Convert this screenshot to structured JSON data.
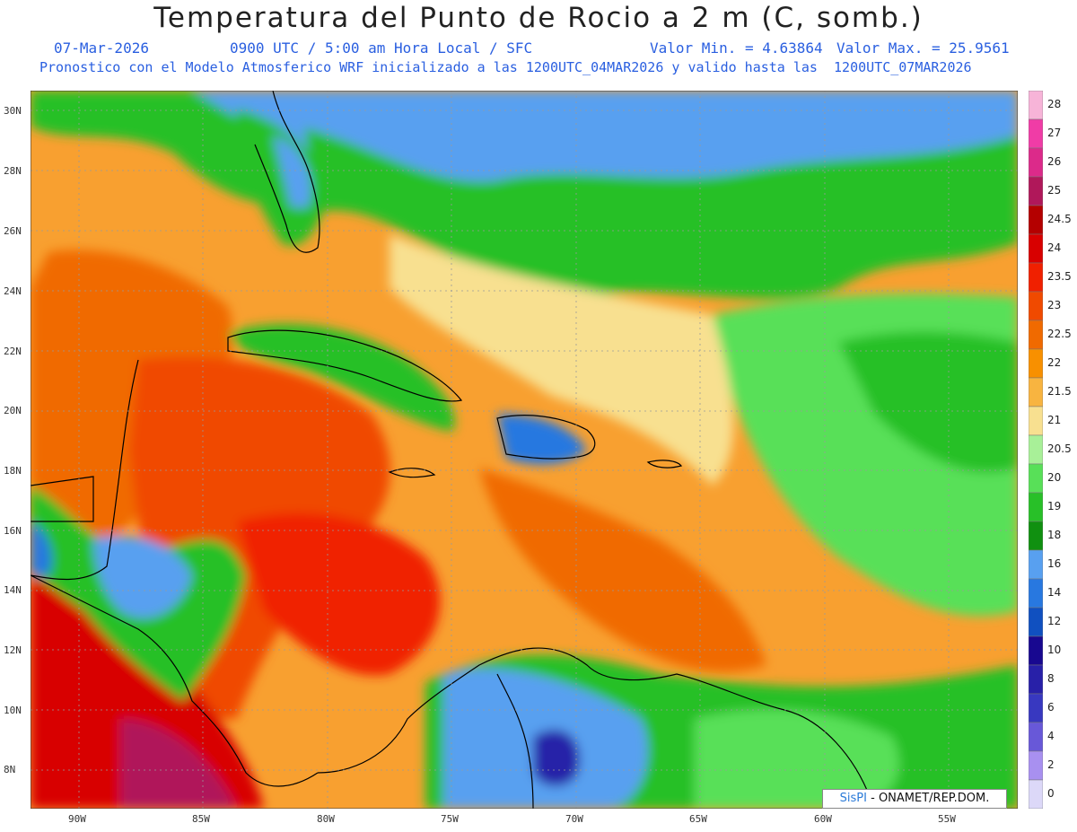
{
  "header": {
    "title": "Temperatura del Punto de Rocio a 2 m (C, somb.)",
    "date": "07-Mar-2026",
    "time": "0900 UTC / 5:00 am Hora Local / SFC",
    "min_label": "Valor Min. = 4.63864",
    "max_label": "Valor Max. = 25.9561",
    "model_info": "Pronostico con el Modelo Atmosferico WRF inicializado a las 1200UTC_04MAR2026 y valido hasta las  1200UTC_07MAR2026"
  },
  "map": {
    "lat_labels": [
      "30N",
      "28N",
      "26N",
      "24N",
      "22N",
      "20N",
      "18N",
      "16N",
      "14N",
      "12N",
      "10N",
      "8N"
    ],
    "lon_labels": [
      "90W",
      "85W",
      "80W",
      "75W",
      "70W",
      "65W",
      "60W",
      "55W"
    ],
    "credit": {
      "brand": "SisPI",
      "text": " - ONAMET/REP.DOM."
    }
  },
  "legend": {
    "labels": [
      "28",
      "27",
      "26",
      "25",
      "24.5",
      "24",
      "23.5",
      "23",
      "22.5",
      "22",
      "21.5",
      "21",
      "20.5",
      "20",
      "19",
      "18",
      "16",
      "14",
      "12",
      "10",
      "8",
      "6",
      "4",
      "2",
      "0"
    ],
    "colors": [
      "#f7b4d8",
      "#f03ca6",
      "#dc2a8a",
      "#b0185a",
      "#b40000",
      "#d80000",
      "#f02000",
      "#f04a00",
      "#f06a00",
      "#f89000",
      "#f8b440",
      "#f8e090",
      "#a8f098",
      "#58e058",
      "#28c028",
      "#109010",
      "#58a0f0",
      "#2878e0",
      "#1050c0",
      "#180890",
      "#2820a8",
      "#3838c0",
      "#6858d8",
      "#a890f0",
      "#dcd8f8"
    ]
  }
}
